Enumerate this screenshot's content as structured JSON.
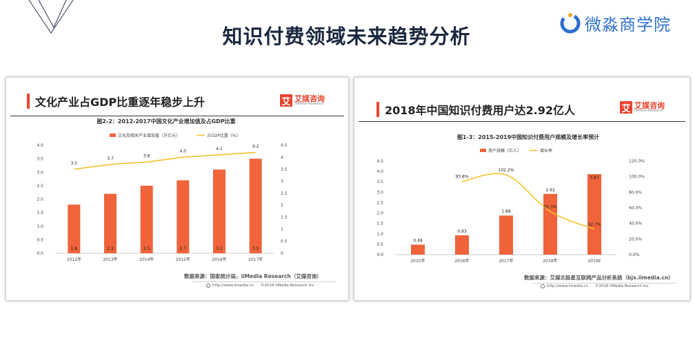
{
  "page": {
    "title": "知识付费领域未来趋势分析"
  },
  "brand": {
    "name": "微淼商学院",
    "accent": "#2e6fce"
  },
  "colors": {
    "bar": "#f0633b",
    "line": "#f5c12a",
    "accent": "#e8442e"
  },
  "left_panel": {
    "heading": "文化产业占GDP比重逐年稳步上升",
    "logo_cn": "艾媒咨询",
    "logo_en": "iiMedia Research",
    "logo_mark": "艾",
    "source": "数据来源：国家统计局，iiMedia Research（艾媒咨询）",
    "website": "http://www.iimedia.cn",
    "copyright": "©2018  iiMedia Research  Inc"
  },
  "right_panel": {
    "heading": "2018年中国知识付费用户达2.92亿人",
    "logo_cn": "艾媒咨询",
    "logo_en": "iiMedia Research",
    "logo_mark": "艾",
    "source": "数据来源：艾媒北极星互联网产品分析系统（bjx.iimedia.cn）",
    "website": "http://www.iimedia.cn",
    "copyright": "©2018  iiMedia Research  Inc"
  },
  "chart_data": [
    {
      "type": "bar",
      "title": "图2-2：2012-2017中国文化产业增加值及占GDP比重",
      "categories": [
        "2012年",
        "2013年",
        "2014年",
        "2015年",
        "2016年",
        "2017年"
      ],
      "series": [
        {
          "name": "文化及相关产业增加值（万亿元）",
          "type": "bar",
          "axis": "left",
          "values": [
            1.8,
            2.2,
            2.5,
            2.7,
            3.1,
            3.5
          ],
          "labels": [
            "1.8",
            "2.2",
            "2.5",
            "2.7",
            "3.1",
            "3.5"
          ]
        },
        {
          "name": "占GDP比重（%）",
          "type": "line",
          "axis": "right",
          "values": [
            3.5,
            3.7,
            3.8,
            4.0,
            4.1,
            4.2
          ],
          "labels": [
            "3.5",
            "3.7",
            "3.8",
            "4.0",
            "4.1",
            "4.2"
          ]
        }
      ],
      "y_left": {
        "min": 0,
        "max": 4.0,
        "ticks": [
          "0.0",
          "0.5",
          "1.0",
          "1.5",
          "2.0",
          "2.5",
          "3.0",
          "3.5",
          "4.0"
        ]
      },
      "y_right": {
        "min": 0,
        "max": 4.5,
        "ticks": [
          "0",
          "0.5",
          "1",
          "1.5",
          "2",
          "2.5",
          "3",
          "3.5",
          "4",
          "4.5"
        ]
      },
      "legend": "top-center",
      "grid": false
    },
    {
      "type": "bar",
      "title": "图1-3：2015-2019中国知识付费用户规模及增长率预计",
      "categories": [
        "2015年",
        "2016年",
        "2017年",
        "2018年",
        "2019E"
      ],
      "series": [
        {
          "name": "用户规模（亿人）",
          "type": "bar",
          "axis": "left",
          "values": [
            0.48,
            0.93,
            1.88,
            2.92,
            3.87
          ],
          "labels": [
            "0.48",
            "0.93",
            "1.88",
            "2.92",
            "3.87"
          ]
        },
        {
          "name": "增长率",
          "type": "line",
          "axis": "right",
          "values": [
            null,
            93.8,
            102.2,
            55.3,
            32.7
          ],
          "labels": [
            "",
            "93.8%",
            "102.2%",
            "55.3%",
            "32.7%"
          ]
        }
      ],
      "y_left": {
        "min": 0,
        "max": 4.5,
        "ticks": [
          "0.0",
          "0.5",
          "1.0",
          "1.5",
          "2.0",
          "2.5",
          "3.0",
          "3.5",
          "4.0",
          "4.5"
        ]
      },
      "y_right": {
        "min": 0,
        "max": 120,
        "ticks": [
          "0.0%",
          "20.0%",
          "40.0%",
          "60.0%",
          "80.0%",
          "100.0%",
          "120.0%"
        ]
      },
      "legend": "top-center",
      "grid": false
    }
  ]
}
